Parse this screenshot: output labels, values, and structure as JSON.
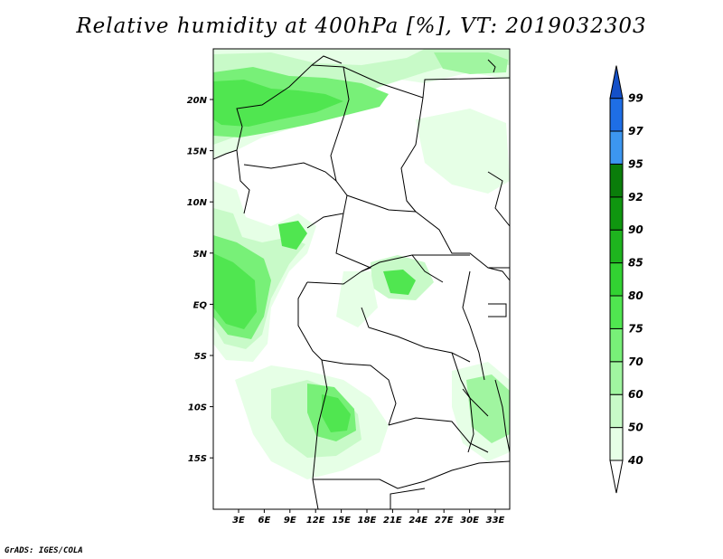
{
  "title": "Relative humidity at 400hPa [%], VT: 2019032303",
  "footer": "GrADS: IGES/COLA",
  "lat_ticks": [
    "20N",
    "15N",
    "10N",
    "5N",
    "EQ",
    "5S",
    "10S",
    "15S"
  ],
  "lon_ticks": [
    "3E",
    "6E",
    "9E",
    "12E",
    "15E",
    "18E",
    "21E",
    "24E",
    "27E",
    "30E",
    "33E"
  ],
  "colorbar": {
    "levels": [
      "40",
      "50",
      "60",
      "70",
      "75",
      "80",
      "85",
      "90",
      "92",
      "95",
      "97",
      "99"
    ],
    "colors": [
      "#ffffff",
      "#e6ffe6",
      "#c8fac8",
      "#a0f5a0",
      "#78f078",
      "#50e650",
      "#32d232",
      "#1eb41e",
      "#0f960f",
      "#0a7d0a",
      "#3c96f0",
      "#1e6ee6",
      "#1450c8"
    ]
  }
}
